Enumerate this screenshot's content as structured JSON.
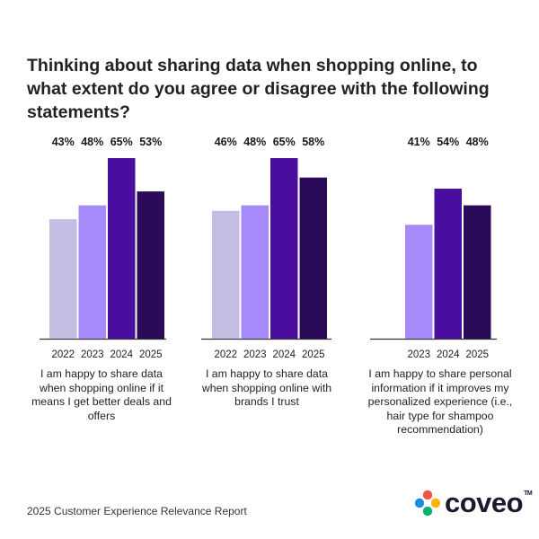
{
  "title": "Thinking about sharing data when shopping online, to what extent do you agree or disagree with the following statements?",
  "footer": {
    "report": "2025 Customer Experience Relevance Report",
    "logo_text": "coveo",
    "logo_tm": "TM"
  },
  "colors": {
    "2022": "#c4bde3",
    "2023": "#a78bfa",
    "2024": "#4a0e9e",
    "2025": "#2b0a5a",
    "axis": "#333333"
  },
  "chart_data": [
    {
      "type": "bar",
      "title": "",
      "categories": [
        "2022",
        "2023",
        "2024",
        "2025"
      ],
      "values": [
        43,
        48,
        65,
        53
      ],
      "value_labels": [
        "43%",
        "48%",
        "65%",
        "53%"
      ],
      "caption": "I am happy to share data when shopping online if it means I get better deals and offers",
      "ylim": [
        0,
        65
      ]
    },
    {
      "type": "bar",
      "title": "",
      "categories": [
        "2022",
        "2023",
        "2024",
        "2025"
      ],
      "values": [
        46,
        48,
        65,
        58
      ],
      "value_labels": [
        "46%",
        "48%",
        "65%",
        "58%"
      ],
      "caption": "I am happy to share data when shopping online with brands I trust",
      "ylim": [
        0,
        65
      ]
    },
    {
      "type": "bar",
      "title": "",
      "categories": [
        "2023",
        "2024",
        "2025"
      ],
      "values": [
        41,
        54,
        48
      ],
      "value_labels": [
        "41%",
        "54%",
        "48%"
      ],
      "caption": "I am happy to share personal information if it improves my personalized experience (i.e., hair type for shampoo recommendation)",
      "ylim": [
        0,
        65
      ]
    }
  ]
}
